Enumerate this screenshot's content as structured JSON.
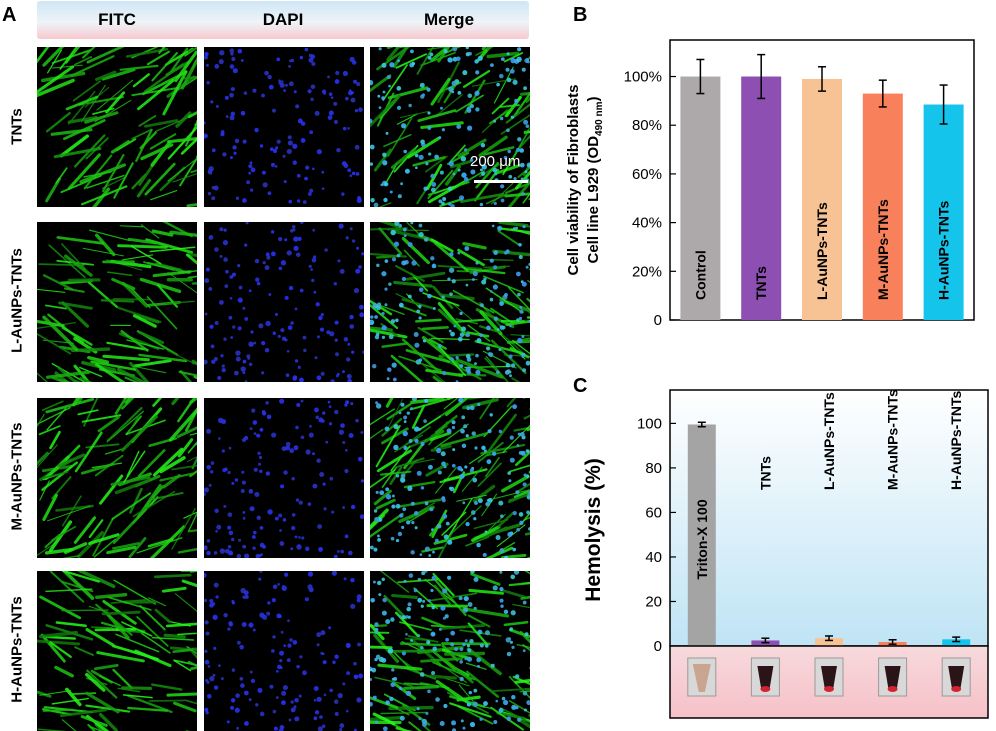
{
  "panel_a": {
    "letter": "A",
    "columns": [
      "FITC",
      "DAPI",
      "Merge"
    ],
    "rows": [
      "TNTs",
      "L-AuNPs-TNTs",
      "M-AuNPs-TNTs",
      "H-AuNPs-TNTs"
    ],
    "scale_bar_label": "200 μm"
  },
  "chart_data": [
    {
      "panel": "B",
      "type": "bar",
      "categories": [
        "Control",
        "TNTs",
        "L-AuNPs-TNTs",
        "M-AuNPs-TNTs",
        "H-AuNPs-TNTs"
      ],
      "values": [
        100,
        100,
        99,
        93,
        88.5
      ],
      "errors": [
        7,
        9,
        5,
        5.5,
        8
      ],
      "colors": [
        "#ada9aa",
        "#8e4fb3",
        "#f8c394",
        "#f8805a",
        "#14c4ea"
      ],
      "ylabel_line1": "Cell viability of Fibroblasts",
      "ylabel_line2": "Cell line L929 (OD",
      "ylabel_sub": "490 nm",
      "ylabel_end": ")",
      "yticks": [
        "0",
        "20%",
        "40%",
        "60%",
        "80%",
        "100%"
      ],
      "ytick_values": [
        0,
        20,
        40,
        60,
        80,
        100
      ],
      "ylim": [
        0,
        115
      ],
      "grid": false
    },
    {
      "panel": "C",
      "type": "bar",
      "categories": [
        "Triton-X 100",
        "TNTs",
        "L-AuNPs-TNTs",
        "M-AuNPs-TNTs",
        "H-AuNPs-TNTs"
      ],
      "values": [
        99.5,
        2.5,
        3.5,
        1.8,
        3
      ],
      "errors": [
        1,
        1,
        1,
        1,
        1
      ],
      "colors": [
        "#a4a4a4",
        "#8e4fb3",
        "#f8c394",
        "#f8805a",
        "#14c4ea"
      ],
      "ylabel": "Hemolysis (%)",
      "yticks": [
        "0",
        "20",
        "40",
        "60",
        "80",
        "100"
      ],
      "ytick_values": [
        0,
        20,
        40,
        60,
        80,
        100
      ],
      "ylim": [
        0,
        115
      ],
      "grid": false
    }
  ],
  "panel_b_letter": "B",
  "panel_c_letter": "C"
}
